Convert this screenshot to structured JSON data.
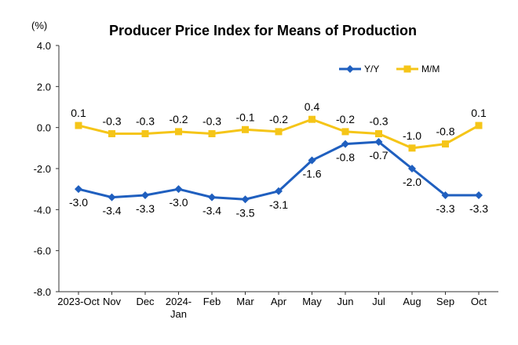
{
  "chart_data": {
    "type": "line",
    "title": "Producer Price Index for Means of Production",
    "unit_label": "(%)",
    "categories": [
      [
        "2023-Oct"
      ],
      [
        "Nov"
      ],
      [
        "Dec"
      ],
      [
        "2024-",
        "Jan"
      ],
      [
        "Feb"
      ],
      [
        "Mar"
      ],
      [
        "Apr"
      ],
      [
        "May"
      ],
      [
        "Jun"
      ],
      [
        "Jul"
      ],
      [
        "Aug"
      ],
      [
        "Sep"
      ],
      [
        "Oct"
      ]
    ],
    "ylim": [
      -8.0,
      4.0
    ],
    "yticks": [
      4.0,
      2.0,
      0.0,
      -2.0,
      -4.0,
      -6.0,
      -8.0
    ],
    "ytick_labels": [
      "4.0",
      "2.0",
      "0.0",
      "-2.0",
      "-4.0",
      "-6.0",
      "-8.0"
    ],
    "grid": false,
    "legend_position": "top-right",
    "series": [
      {
        "name": "Y/Y",
        "color": "#1f5fbf",
        "marker": "diamond",
        "values": [
          -3.0,
          -3.4,
          -3.3,
          -3.0,
          -3.4,
          -3.5,
          -3.1,
          -1.6,
          -0.8,
          -0.7,
          -2.0,
          -3.3,
          -3.3
        ],
        "labels": [
          "-3.0",
          "-3.4",
          "-3.3",
          "-3.0",
          "-3.4",
          "-3.5",
          "-3.1",
          "-1.6",
          "-0.8",
          "-0.7",
          "-2.0",
          "-3.3",
          "-3.3"
        ]
      },
      {
        "name": "M/M",
        "color": "#f5c518",
        "marker": "square",
        "values": [
          0.1,
          -0.3,
          -0.3,
          -0.2,
          -0.3,
          -0.1,
          -0.2,
          0.4,
          -0.2,
          -0.3,
          -1.0,
          -0.8,
          0.1
        ],
        "labels": [
          "0.1",
          "-0.3",
          "-0.3",
          "-0.2",
          "-0.3",
          "-0.1",
          "-0.2",
          "0.4",
          "-0.2",
          "-0.3",
          "-1.0",
          "-0.8",
          "0.1"
        ]
      }
    ]
  }
}
